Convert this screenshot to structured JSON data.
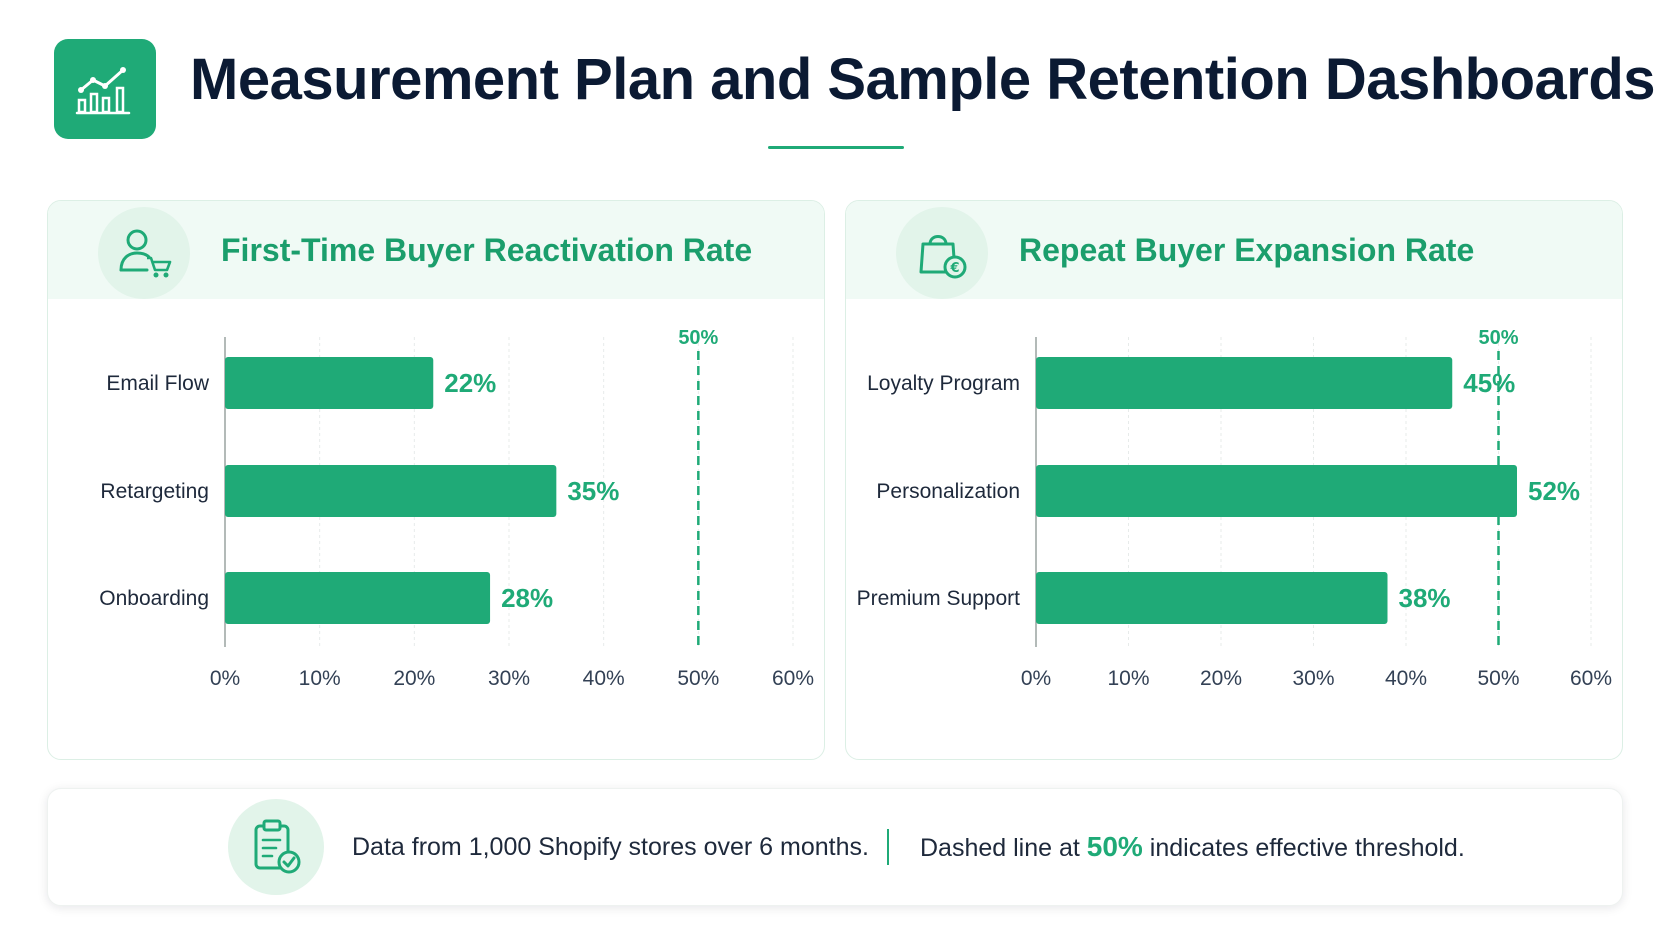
{
  "header": {
    "title": "Measurement Plan and Sample Retention Dashboards",
    "icon": "chart-growth-icon"
  },
  "colors": {
    "accent": "#1faa77",
    "title_green": "#1b9e6c",
    "text_dark": "#0b1a33",
    "panel_header_bg": "#f0faf5"
  },
  "chart_data": [
    {
      "type": "bar",
      "orientation": "horizontal",
      "title": "First-Time Buyer Reactivation Rate",
      "icon": "user-cart-icon",
      "categories": [
        "Email Flow",
        "Retargeting",
        "Onboarding"
      ],
      "values": [
        22,
        35,
        28
      ],
      "data_labels": [
        "22%",
        "35%",
        "28%"
      ],
      "xlim": [
        0,
        60
      ],
      "xticks": [
        "0%",
        "10%",
        "20%",
        "30%",
        "40%",
        "50%",
        "60%"
      ],
      "threshold": {
        "value": 50,
        "label": "50%",
        "style": "dashed"
      },
      "grid": true
    },
    {
      "type": "bar",
      "orientation": "horizontal",
      "title": "Repeat Buyer Expansion Rate",
      "icon": "shopping-bag-money-icon",
      "categories": [
        "Loyalty Program",
        "Personalization",
        "Premium Support"
      ],
      "values": [
        45,
        52,
        38
      ],
      "data_labels": [
        "45%",
        "52%",
        "38%"
      ],
      "xlim": [
        0,
        60
      ],
      "xticks": [
        "0%",
        "10%",
        "20%",
        "30%",
        "40%",
        "50%",
        "60%"
      ],
      "threshold": {
        "value": 50,
        "label": "50%",
        "style": "dashed"
      },
      "grid": true
    }
  ],
  "footer": {
    "icon": "clipboard-check-icon",
    "note": "Data from 1,000 Shopify stores over 6 months.",
    "threshold_before": "Dashed line at ",
    "threshold_value": "50%",
    "threshold_after": " indicates effective threshold."
  }
}
